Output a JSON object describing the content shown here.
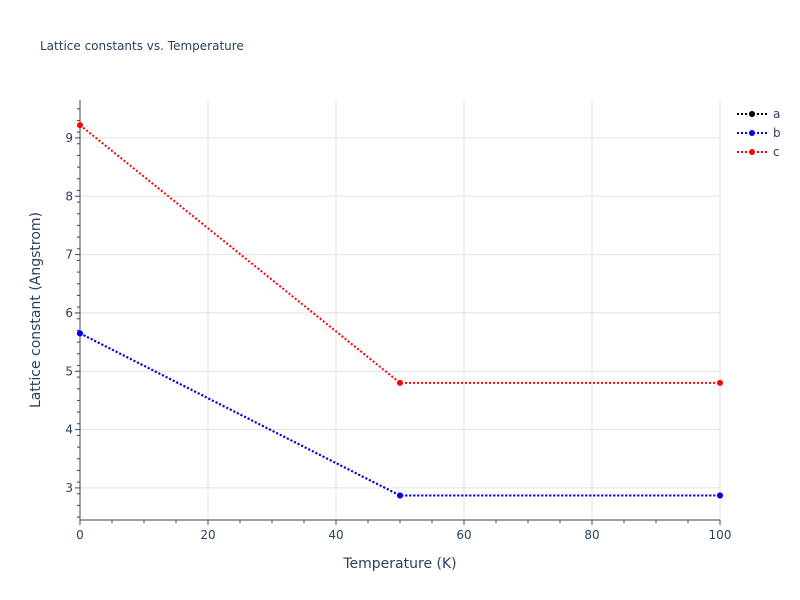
{
  "chart_data": {
    "type": "line",
    "title": "Lattice constants vs. Temperature",
    "xlabel": "Temperature (K)",
    "ylabel": "Lattice constant (Angstrom)",
    "xlim": [
      0,
      100
    ],
    "ylim": [
      2.45,
      9.65
    ],
    "xticks": [
      0,
      20,
      40,
      60,
      80,
      100
    ],
    "yticks": [
      3,
      4,
      5,
      6,
      7,
      8,
      9
    ],
    "x_minor_ticks": [
      5,
      10,
      15,
      25,
      30,
      35,
      45,
      50,
      55,
      65,
      70,
      75,
      85,
      90,
      95
    ],
    "grid": true,
    "legend_position": "top-right",
    "series": [
      {
        "name": "a",
        "color": "#000000",
        "x": [
          0,
          50,
          100
        ],
        "y": [
          5.65,
          2.87,
          2.87
        ]
      },
      {
        "name": "b",
        "color": "#0000ff",
        "x": [
          0,
          50,
          100
        ],
        "y": [
          5.65,
          2.87,
          2.87
        ]
      },
      {
        "name": "c",
        "color": "#ff0000",
        "x": [
          0,
          50,
          100
        ],
        "y": [
          9.22,
          4.8,
          4.8
        ]
      }
    ]
  }
}
